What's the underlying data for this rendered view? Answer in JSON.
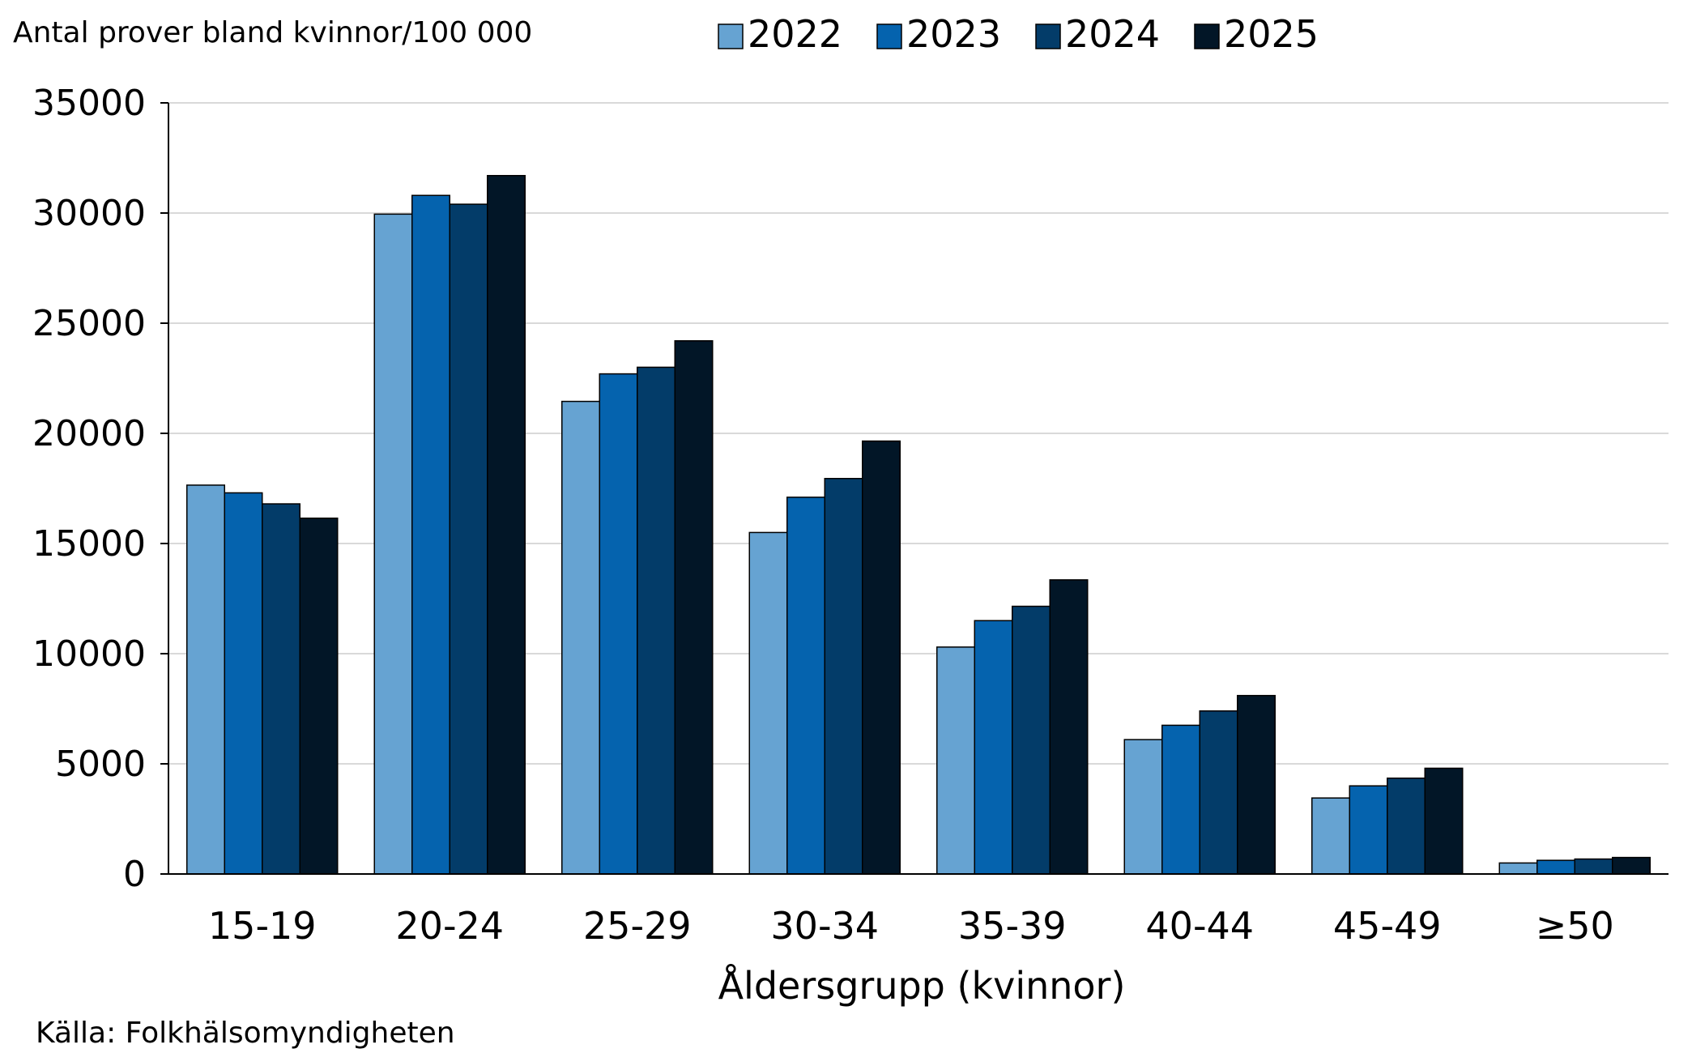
{
  "chart_data": {
    "type": "bar",
    "title": "",
    "ylabel": "Antal prover bland kvinnor/100 000",
    "xlabel": "Åldersgrupp (kvinnor)",
    "source": "Källa: Folkhälsomyndigheten",
    "categories": [
      "15-19",
      "20-24",
      "25-29",
      "30-34",
      "35-39",
      "40-44",
      "45-49",
      "≥50"
    ],
    "ylim": [
      0,
      35000
    ],
    "yticks": [
      "0",
      "5000",
      "10000",
      "15000",
      "20000",
      "25000",
      "30000",
      "35000"
    ],
    "grid": true,
    "legend_position": "top",
    "series": [
      {
        "name": "2022",
        "color": "#66A3D2",
        "values": [
          17650,
          29950,
          21450,
          15500,
          10300,
          6100,
          3450,
          500
        ]
      },
      {
        "name": "2023",
        "color": "#0563AE",
        "values": [
          17300,
          30800,
          22700,
          17100,
          11500,
          6750,
          4000,
          620
        ]
      },
      {
        "name": "2024",
        "color": "#033C69",
        "values": [
          16800,
          30400,
          23000,
          17950,
          12150,
          7400,
          4350,
          680
        ]
      },
      {
        "name": "2025",
        "color": "#021627",
        "values": [
          16150,
          31700,
          24200,
          19650,
          13350,
          8100,
          4800,
          750
        ]
      }
    ]
  }
}
